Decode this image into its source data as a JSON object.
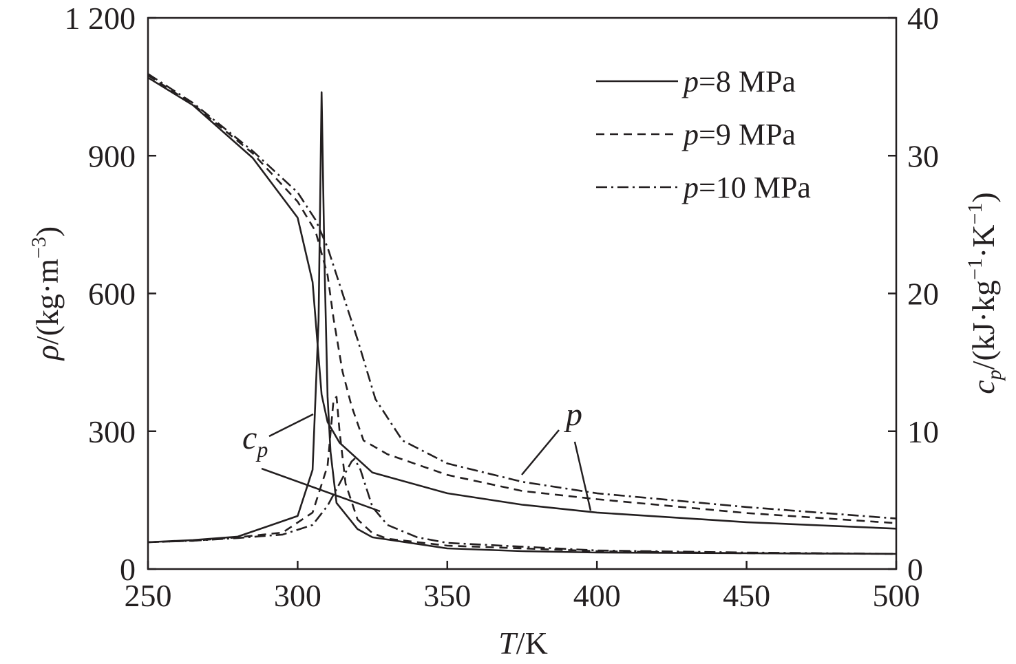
{
  "chart_data": {
    "type": "line",
    "xlabel": {
      "var": "T",
      "unit": "/K"
    },
    "ylabel_left": {
      "var": "ρ",
      "unit": "/(kg·m",
      "sup": "−3",
      "close": ")"
    },
    "ylabel_right": {
      "var": "c",
      "sub": "p",
      "unit": "/(kJ·kg",
      "sup1": "−1",
      "mid": "·K",
      "sup2": "−1",
      "close": ")"
    },
    "xlim": [
      250,
      500
    ],
    "ylim_left": [
      0,
      1200
    ],
    "ylim_right": [
      0,
      40
    ],
    "x_ticks": [
      "250",
      "300",
      "350",
      "400",
      "450",
      "500"
    ],
    "y_left_ticks": [
      "0",
      "300",
      "600",
      "900",
      "1 200"
    ],
    "y_right_ticks": [
      "0",
      "10",
      "20",
      "30",
      "40"
    ],
    "legend_position": "top-right",
    "legend": [
      {
        "var": "p",
        "text": "=8 MPa",
        "style": "solid"
      },
      {
        "var": "p",
        "text": "=9 MPa",
        "style": "dashed"
      },
      {
        "var": "p",
        "text": "=10 MPa",
        "style": "dashdot"
      }
    ],
    "annotations": {
      "cp_var": "c",
      "cp_sub": "p",
      "rho_label": "p"
    },
    "series": [
      {
        "quantity": "density",
        "axis": "left",
        "pressure": "8 MPa",
        "style": "solid",
        "x": [
          250,
          265,
          285,
          300,
          305,
          308,
          310,
          314,
          325,
          350,
          375,
          400,
          450,
          500
        ],
        "y": [
          1070,
          1010,
          895,
          765,
          625,
          380,
          320,
          275,
          210,
          165,
          140,
          123,
          102,
          88
        ]
      },
      {
        "quantity": "density",
        "axis": "left",
        "pressure": "9 MPa",
        "style": "dashed",
        "x": [
          250,
          265,
          285,
          300,
          306,
          310,
          312,
          315,
          318,
          322,
          330,
          350,
          375,
          400,
          450,
          500
        ],
        "y": [
          1075,
          1012,
          905,
          800,
          735,
          640,
          545,
          430,
          355,
          280,
          250,
          205,
          170,
          152,
          122,
          100
        ]
      },
      {
        "quantity": "density",
        "axis": "left",
        "pressure": "10 MPa",
        "style": "dashdot",
        "x": [
          250,
          265,
          285,
          300,
          306,
          310,
          314,
          320,
          326,
          335,
          350,
          375,
          400,
          450,
          500
        ],
        "y": [
          1078,
          1015,
          910,
          820,
          760,
          700,
          620,
          500,
          370,
          280,
          230,
          190,
          165,
          135,
          110
        ]
      },
      {
        "quantity": "cp",
        "axis": "right",
        "pressure": "8 MPa",
        "style": "solid",
        "x": [
          250,
          265,
          280,
          300,
          305,
          307,
          308,
          309,
          310,
          311,
          313,
          320,
          325,
          350,
          375,
          400,
          450,
          500
        ],
        "y": [
          1.95,
          2.1,
          2.35,
          3.85,
          7.2,
          18,
          34.6,
          22,
          12.5,
          8.5,
          4.8,
          2.9,
          2.3,
          1.5,
          1.3,
          1.2,
          1.15,
          1.1
        ]
      },
      {
        "quantity": "cp",
        "axis": "right",
        "pressure": "9 MPa",
        "style": "dashed",
        "x": [
          250,
          265,
          280,
          295,
          305,
          310,
          312,
          313,
          314,
          316,
          320,
          325,
          330,
          350,
          400,
          450,
          500
        ],
        "y": [
          1.95,
          2.05,
          2.3,
          2.65,
          4.1,
          7.5,
          12.3,
          12.5,
          10,
          6.2,
          3.6,
          2.6,
          2.2,
          1.7,
          1.3,
          1.15,
          1.1
        ]
      },
      {
        "quantity": "cp",
        "axis": "right",
        "pressure": "10 MPa",
        "style": "dashdot",
        "x": [
          250,
          265,
          280,
          295,
          305,
          310,
          315,
          318,
          319,
          321,
          325,
          330,
          340,
          350,
          400,
          450,
          500
        ],
        "y": [
          1.95,
          2.05,
          2.25,
          2.5,
          3.2,
          4.6,
          6.6,
          7.8,
          8.0,
          7.2,
          4.5,
          3.2,
          2.3,
          1.9,
          1.35,
          1.2,
          1.1
        ]
      }
    ]
  }
}
